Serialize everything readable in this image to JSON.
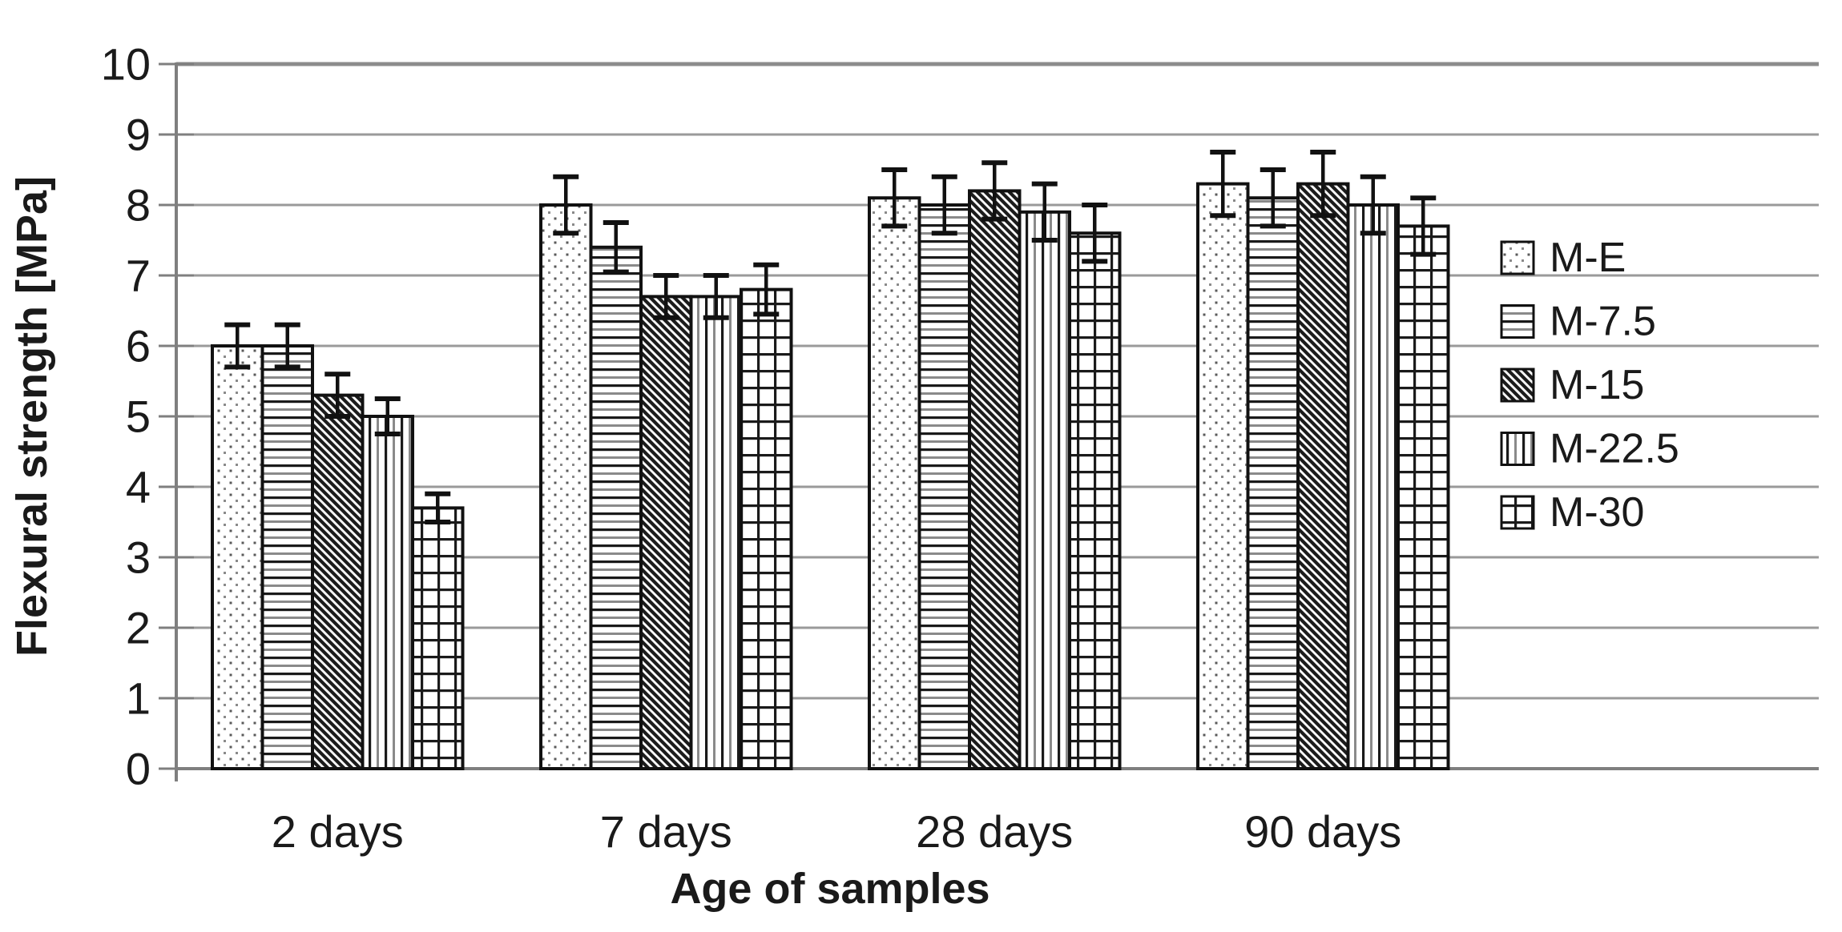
{
  "chart_data": {
    "type": "bar",
    "title": "",
    "categories": [
      "2 days",
      "7 days",
      "28 days",
      "90 days"
    ],
    "series": [
      {
        "name": "M-E",
        "pattern": "dots",
        "values": [
          6.0,
          8.0,
          8.1,
          8.3
        ],
        "errors": [
          0.3,
          0.4,
          0.4,
          0.45
        ]
      },
      {
        "name": "M-7.5",
        "pattern": "horizontal-lines",
        "values": [
          6.0,
          7.4,
          8.0,
          8.1
        ],
        "errors": [
          0.3,
          0.35,
          0.4,
          0.4
        ]
      },
      {
        "name": "M-15",
        "pattern": "diagonal-hatch",
        "values": [
          5.3,
          6.7,
          8.2,
          8.3
        ],
        "errors": [
          0.3,
          0.3,
          0.4,
          0.45
        ]
      },
      {
        "name": "M-22.5",
        "pattern": "vertical-lines",
        "values": [
          5.0,
          6.7,
          7.9,
          8.0
        ],
        "errors": [
          0.25,
          0.3,
          0.4,
          0.4
        ]
      },
      {
        "name": "M-30",
        "pattern": "grid",
        "values": [
          3.7,
          6.8,
          7.6,
          7.7
        ],
        "errors": [
          0.2,
          0.35,
          0.4,
          0.4
        ]
      }
    ],
    "xlabel": "Age of samples",
    "ylabel": "Flexural strength [MPa]",
    "ylim": [
      0,
      10
    ],
    "yticks": [
      0,
      1,
      2,
      3,
      4,
      5,
      6,
      7,
      8,
      9,
      10
    ],
    "grid": true,
    "error_bars": true,
    "legend_position": "right",
    "colors": {
      "bar_outline": "#111111",
      "error_bar": "#111111",
      "gridline": "#9a9a9a",
      "gridline_top": "#8c8c8c",
      "axis": "#7f7f7f",
      "text": "#1a1a1a",
      "background": "#ffffff"
    }
  }
}
